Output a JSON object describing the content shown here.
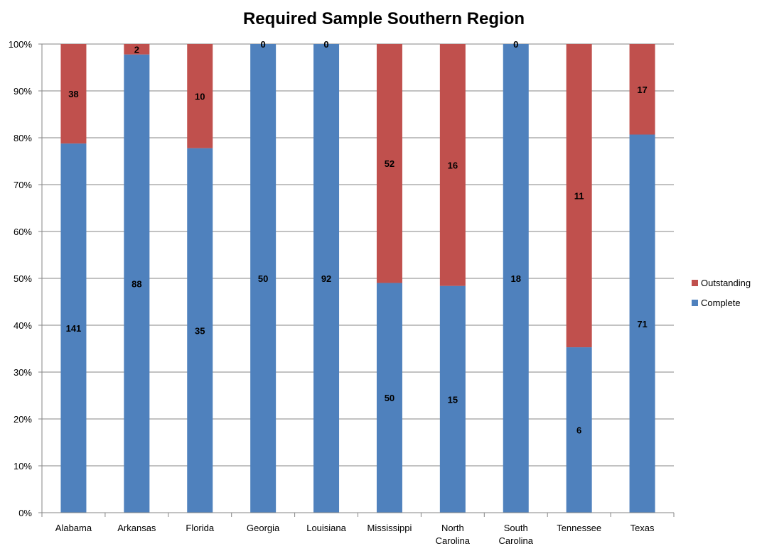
{
  "chart_data": {
    "type": "bar",
    "stacking": "percent",
    "title": "Required Sample Southern Region",
    "xlabel": "",
    "ylabel": "",
    "ylim": [
      0,
      100
    ],
    "y_ticks": [
      "0%",
      "10%",
      "20%",
      "30%",
      "40%",
      "50%",
      "60%",
      "70%",
      "80%",
      "90%",
      "100%"
    ],
    "grid": true,
    "legend_position": "right",
    "categories": [
      [
        "Alabama"
      ],
      [
        "Arkansas"
      ],
      [
        "Florida"
      ],
      [
        "Georgia"
      ],
      [
        "Louisiana"
      ],
      [
        "Mississippi"
      ],
      [
        "North",
        "Carolina"
      ],
      [
        "South",
        "Carolina"
      ],
      [
        "Tennessee"
      ],
      [
        "Texas"
      ]
    ],
    "series": [
      {
        "name": "Complete",
        "color": "#4f81bd",
        "values": [
          141,
          88,
          35,
          50,
          92,
          50,
          15,
          18,
          6,
          71
        ]
      },
      {
        "name": "Outstanding",
        "color": "#c0504d",
        "values": [
          38,
          2,
          10,
          0,
          0,
          52,
          16,
          0,
          11,
          17
        ]
      }
    ],
    "legend_order": [
      "Outstanding",
      "Complete"
    ]
  }
}
